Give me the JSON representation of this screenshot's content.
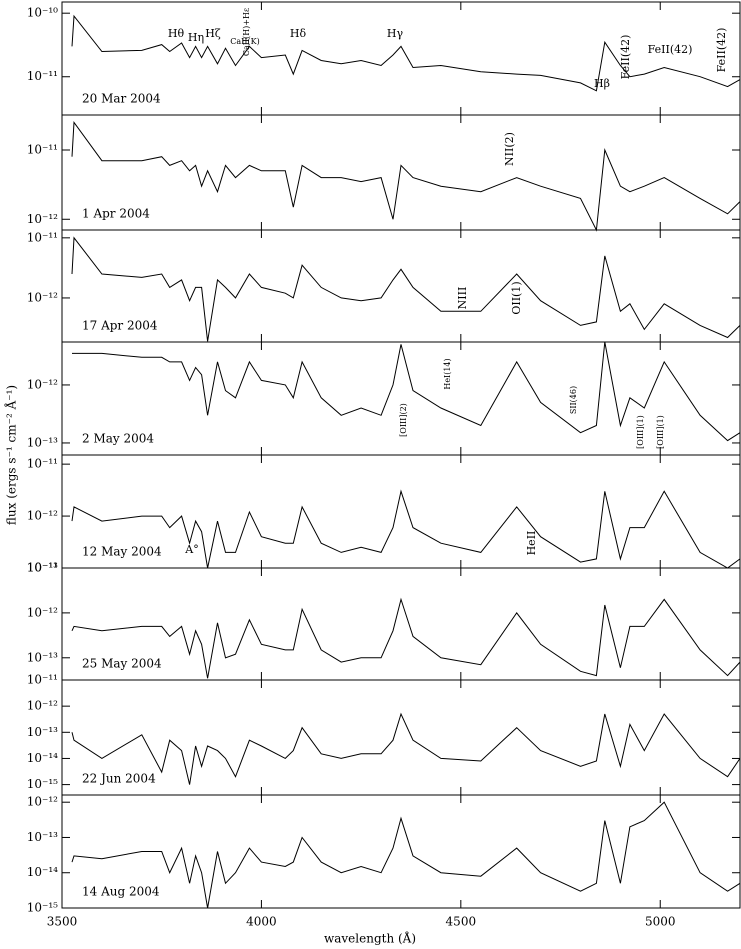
{
  "figure": {
    "xlabel": "wavelength (Å)",
    "ylabel": "flux (ergs s⁻¹ cm⁻² Å⁻¹)"
  },
  "chart_data": [
    {
      "type": "line",
      "label": "20 Mar 2004",
      "yscale": "log",
      "xlim": [
        3500,
        5200
      ],
      "xticks": [
        3500,
        4000,
        4500,
        5000
      ],
      "ylim": [
        2.5e-12,
        1.5e-10
      ],
      "yticks": [
        {
          "value": 1e-10,
          "label": "10⁻¹⁰"
        },
        {
          "value": 1e-11,
          "label": "10⁻¹¹"
        }
      ],
      "annotations": [
        "Hθ",
        "Hη",
        "Hζ",
        "CaII(K)",
        "CaII(H)+Hε",
        "Hδ",
        "Hγ",
        "Hβ",
        "FeII(42)",
        "FeII(42)",
        "FeII(42)"
      ],
      "x": [
        3525,
        3530,
        3600,
        3700,
        3750,
        3770,
        3800,
        3820,
        3835,
        3850,
        3865,
        3890,
        3910,
        3935,
        3970,
        4000,
        4060,
        4080,
        4102,
        4150,
        4200,
        4250,
        4300,
        4330,
        4350,
        4380,
        4450,
        4550,
        4640,
        4700,
        4800,
        4840,
        4861,
        4900,
        4924,
        4960,
        5010,
        5100,
        5169,
        5200
      ],
      "series": [
        {
          "color": "#000000",
          "values": [
            3e-11,
            9e-11,
            2.5e-11,
            2.6e-11,
            3.2e-11,
            2.5e-11,
            3.4e-11,
            2e-11,
            3e-11,
            2e-11,
            3e-11,
            1.6e-11,
            2.8e-11,
            1.5e-11,
            3e-11,
            2e-11,
            2.2e-11,
            1.1e-11,
            2.6e-11,
            1.8e-11,
            1.6e-11,
            1.8e-11,
            1.5e-11,
            2.2e-11,
            3e-11,
            1.4e-11,
            1.5e-11,
            1.2e-11,
            1.1e-11,
            1.05e-11,
            8e-12,
            6e-12,
            3.5e-11,
            1.5e-11,
            1e-11,
            1.1e-11,
            1.4e-11,
            1e-11,
            7e-12,
            9e-12
          ]
        }
      ]
    },
    {
      "type": "line",
      "label": "1 Apr 2004",
      "yscale": "log",
      "xlim": [
        3500,
        5200
      ],
      "xticks": [
        3500,
        4000,
        4500,
        5000
      ],
      "ylim": [
        7e-13,
        3.2e-11
      ],
      "yticks": [
        {
          "value": 1e-11,
          "label": "10⁻¹¹"
        },
        {
          "value": 1e-12,
          "label": "10⁻¹²"
        }
      ],
      "annotations": [
        "NII(2)"
      ],
      "x": [
        3525,
        3530,
        3600,
        3700,
        3750,
        3770,
        3800,
        3820,
        3835,
        3850,
        3865,
        3890,
        3910,
        3935,
        3970,
        4000,
        4060,
        4080,
        4102,
        4150,
        4200,
        4250,
        4300,
        4330,
        4350,
        4380,
        4450,
        4550,
        4640,
        4700,
        4800,
        4840,
        4861,
        4900,
        4924,
        4960,
        5010,
        5100,
        5169,
        5200
      ],
      "series": [
        {
          "color": "#000000",
          "values": [
            8e-12,
            2.5e-11,
            7e-12,
            7e-12,
            8e-12,
            6e-12,
            7e-12,
            5e-12,
            6e-12,
            3e-12,
            5e-12,
            2.5e-12,
            6e-12,
            4e-12,
            6e-12,
            5e-12,
            5e-12,
            1.5e-12,
            6e-12,
            4e-12,
            4e-12,
            3.5e-12,
            4e-12,
            1e-12,
            6e-12,
            4e-12,
            3e-12,
            2.5e-12,
            4e-12,
            3e-12,
            2e-12,
            7e-13,
            1e-11,
            3e-12,
            2.5e-12,
            3e-12,
            4e-12,
            2e-12,
            1.2e-12,
            1.8e-12
          ]
        }
      ]
    },
    {
      "type": "line",
      "label": "17 Apr 2004",
      "yscale": "log",
      "xlim": [
        3500,
        5200
      ],
      "xticks": [
        3500,
        4000,
        4500,
        5000
      ],
      "ylim": [
        1.85e-13,
        1.35e-11
      ],
      "yticks": [
        {
          "value": 1e-11,
          "label": "10⁻¹¹"
        },
        {
          "value": 1e-12,
          "label": "10⁻¹²"
        }
      ],
      "annotations": [
        "NIII",
        "OII(1)"
      ],
      "x": [
        3525,
        3530,
        3600,
        3700,
        3750,
        3770,
        3800,
        3820,
        3835,
        3850,
        3865,
        3890,
        3910,
        3935,
        3970,
        4000,
        4060,
        4080,
        4102,
        4150,
        4200,
        4250,
        4300,
        4330,
        4350,
        4380,
        4450,
        4550,
        4640,
        4700,
        4800,
        4840,
        4861,
        4900,
        4924,
        4960,
        5010,
        5100,
        5169,
        5200
      ],
      "series": [
        {
          "color": "#000000",
          "values": [
            2.5e-12,
            1e-11,
            2.5e-12,
            2.2e-12,
            2.5e-12,
            1.5e-12,
            2e-12,
            9e-13,
            1.5e-12,
            1.5e-12,
            1.9e-13,
            2e-12,
            1.5e-12,
            1e-12,
            2.5e-12,
            1.5e-12,
            1.2e-12,
            1e-12,
            3.5e-12,
            1.5e-12,
            1e-12,
            9e-13,
            1e-12,
            2e-12,
            3e-12,
            1.5e-12,
            6e-13,
            6e-13,
            2.5e-12,
            9e-13,
            3.5e-13,
            4e-13,
            5e-12,
            6e-13,
            8e-13,
            3e-13,
            8e-13,
            3.5e-13,
            2.2e-13,
            3.5e-13
          ]
        }
      ]
    },
    {
      "type": "line",
      "label": "2 May 2004",
      "yscale": "log",
      "xlim": [
        3500,
        5200
      ],
      "xticks": [
        3500,
        4000,
        4500,
        5000
      ],
      "ylim": [
        6.2e-14,
        5.5e-12
      ],
      "yticks": [
        {
          "value": 1e-12,
          "label": "10⁻¹²"
        },
        {
          "value": 1e-13,
          "label": "10⁻¹³"
        }
      ],
      "annotations": [
        "[OIII](2)",
        "HeI(14)",
        "SII(46)",
        "[OIII](1)",
        "[OIII](1)"
      ],
      "x": [
        3525,
        3530,
        3600,
        3700,
        3750,
        3770,
        3800,
        3820,
        3835,
        3850,
        3865,
        3890,
        3910,
        3935,
        3970,
        4000,
        4060,
        4080,
        4102,
        4150,
        4200,
        4250,
        4300,
        4330,
        4350,
        4380,
        4450,
        4550,
        4640,
        4700,
        4800,
        4840,
        4861,
        4900,
        4924,
        4960,
        5010,
        5100,
        5169,
        5200
      ],
      "series": [
        {
          "color": "#000000",
          "values": [
            3.5e-12,
            3.5e-12,
            3.5e-12,
            3e-12,
            3e-12,
            2.5e-12,
            2.5e-12,
            1.2e-12,
            2e-12,
            1.5e-12,
            3e-13,
            2.5e-12,
            8e-13,
            6e-13,
            2.5e-12,
            1.2e-12,
            1e-12,
            6e-13,
            2.5e-12,
            6e-13,
            3e-13,
            4e-13,
            3e-13,
            1e-12,
            5e-12,
            8e-13,
            4e-13,
            2e-13,
            2.5e-12,
            5e-13,
            1.5e-13,
            2e-13,
            5.5e-12,
            2e-13,
            6e-13,
            4e-13,
            2.5e-12,
            3e-13,
            1.1e-13,
            1.5e-13
          ]
        }
      ]
    },
    {
      "type": "line",
      "label": "12 May 2004",
      "yscale": "log",
      "xlim": [
        3500,
        5200
      ],
      "xticks": [
        3500,
        4000,
        4500,
        5000
      ],
      "ylim": [
        1e-13,
        1.5e-11
      ],
      "yticks": [
        {
          "value": 1e-11,
          "label": "10⁻¹¹"
        },
        {
          "value": 1e-12,
          "label": "10⁻¹²"
        },
        {
          "value": 1e-13,
          "label": "10⁻¹³"
        }
      ],
      "annotations": [
        "A°",
        "HeII"
      ],
      "x": [
        3525,
        3530,
        3600,
        3700,
        3750,
        3770,
        3800,
        3820,
        3835,
        3850,
        3865,
        3890,
        3910,
        3935,
        3970,
        4000,
        4060,
        4080,
        4102,
        4150,
        4200,
        4250,
        4300,
        4330,
        4350,
        4380,
        4450,
        4550,
        4640,
        4700,
        4800,
        4840,
        4861,
        4900,
        4924,
        4960,
        5010,
        5100,
        5169,
        5200
      ],
      "series": [
        {
          "color": "#000000",
          "values": [
            8e-13,
            1.5e-12,
            8e-13,
            1e-12,
            1e-12,
            6e-13,
            1e-12,
            3e-13,
            8e-13,
            5e-13,
            1e-13,
            8e-13,
            2e-13,
            2e-13,
            1.2e-12,
            4e-13,
            3e-13,
            3e-13,
            1.5e-12,
            3e-13,
            2e-13,
            2.5e-13,
            2e-13,
            6e-13,
            3e-12,
            6e-13,
            3e-13,
            2e-13,
            1.5e-12,
            4e-13,
            1.3e-13,
            1.5e-13,
            3e-12,
            1.5e-13,
            6e-13,
            6e-13,
            3e-12,
            2e-13,
            1e-13,
            1.5e-13
          ]
        }
      ]
    },
    {
      "type": "line",
      "label": "25 May 2004",
      "yscale": "log",
      "xlim": [
        3500,
        5200
      ],
      "xticks": [
        3500,
        4000,
        4500,
        5000
      ],
      "ylim": [
        3.2e-14,
        1e-11
      ],
      "yticks": [
        {
          "value": 1e-11,
          "label": "10⁻¹¹"
        },
        {
          "value": 1e-12,
          "label": "10⁻¹²"
        },
        {
          "value": 1e-13,
          "label": "10⁻¹³"
        }
      ],
      "x": [
        3525,
        3530,
        3600,
        3700,
        3750,
        3770,
        3800,
        3820,
        3835,
        3850,
        3865,
        3890,
        3910,
        3935,
        3970,
        4000,
        4060,
        4080,
        4102,
        4150,
        4200,
        4250,
        4300,
        4330,
        4350,
        4380,
        4450,
        4550,
        4640,
        4700,
        4800,
        4840,
        4861,
        4900,
        4924,
        4960,
        5010,
        5100,
        5169,
        5200
      ],
      "series": [
        {
          "color": "#000000",
          "values": [
            4e-13,
            5e-13,
            4e-13,
            5e-13,
            5e-13,
            3e-13,
            5e-13,
            1.2e-13,
            4e-13,
            2e-13,
            3.5e-14,
            6e-13,
            1e-13,
            1.2e-13,
            7e-13,
            2e-13,
            1.5e-13,
            1.5e-13,
            1.2e-12,
            1.5e-13,
            8e-14,
            1e-13,
            1e-13,
            4e-13,
            2e-12,
            3e-13,
            1e-13,
            7e-14,
            1e-12,
            2e-13,
            5e-14,
            4e-14,
            1.5e-12,
            6e-14,
            5e-13,
            5e-13,
            2e-12,
            1.5e-13,
            4e-14,
            8e-14
          ]
        }
      ]
    },
    {
      "type": "line",
      "label": "22 Jun 2004",
      "yscale": "log",
      "xlim": [
        3500,
        5200
      ],
      "xticks": [
        3500,
        4000,
        4500,
        5000
      ],
      "ylim": [
        4e-16,
        1e-11
      ],
      "yticks": [
        {
          "value": 1e-11,
          "label": "10⁻¹¹"
        },
        {
          "value": 1e-12,
          "label": "10⁻¹²"
        },
        {
          "value": 1e-13,
          "label": "10⁻¹³"
        },
        {
          "value": 1e-14,
          "label": "10⁻¹⁴"
        },
        {
          "value": 1e-15,
          "label": "10⁻¹⁵"
        }
      ],
      "x": [
        3525,
        3530,
        3600,
        3700,
        3750,
        3770,
        3800,
        3820,
        3835,
        3850,
        3865,
        3890,
        3910,
        3935,
        3970,
        4000,
        4060,
        4080,
        4102,
        4150,
        4200,
        4250,
        4300,
        4330,
        4350,
        4380,
        4450,
        4550,
        4640,
        4700,
        4800,
        4840,
        4861,
        4900,
        4924,
        4960,
        5010,
        5100,
        5169,
        5200
      ],
      "series": [
        {
          "color": "#000000",
          "values": [
            1e-13,
            5e-14,
            1e-14,
            8e-14,
            3e-15,
            5e-14,
            2e-14,
            1e-15,
            3e-14,
            5e-15,
            3e-14,
            2e-14,
            1e-14,
            2e-15,
            5e-14,
            3e-14,
            1e-14,
            2e-14,
            1.5e-13,
            1.5e-14,
            1e-14,
            1.5e-14,
            1.5e-14,
            5e-14,
            5e-13,
            5e-14,
            1e-14,
            8e-15,
            1.5e-13,
            2e-14,
            5e-15,
            8e-15,
            5e-13,
            5e-15,
            2e-13,
            2e-14,
            5e-13,
            1e-14,
            2e-15,
            1e-14
          ]
        }
      ]
    },
    {
      "type": "line",
      "label": "14 Aug 2004",
      "yscale": "log",
      "xlim": [
        3500,
        5200
      ],
      "xticks": [
        3500,
        4000,
        4500,
        5000
      ],
      "ylim": [
        1e-15,
        1.6e-12
      ],
      "yticks": [
        {
          "value": 1e-12,
          "label": "10⁻¹²"
        },
        {
          "value": 1e-13,
          "label": "10⁻¹³"
        },
        {
          "value": 1e-14,
          "label": "10⁻¹⁴"
        },
        {
          "value": 1e-15,
          "label": "10⁻¹⁵"
        }
      ],
      "x": [
        3525,
        3530,
        3600,
        3700,
        3750,
        3770,
        3800,
        3820,
        3835,
        3850,
        3865,
        3890,
        3910,
        3935,
        3970,
        4000,
        4060,
        4080,
        4102,
        4150,
        4200,
        4250,
        4300,
        4330,
        4350,
        4380,
        4450,
        4550,
        4640,
        4700,
        4800,
        4840,
        4861,
        4900,
        4924,
        4960,
        5010,
        5100,
        5169,
        5200
      ],
      "series": [
        {
          "color": "#000000",
          "values": [
            2e-14,
            3e-14,
            2.5e-14,
            4e-14,
            4e-14,
            1e-14,
            5e-14,
            5e-15,
            3e-14,
            1e-14,
            1e-15,
            4e-14,
            5e-15,
            1e-14,
            5e-14,
            2e-14,
            1.5e-14,
            2e-14,
            1e-13,
            2e-14,
            1e-14,
            1.5e-14,
            1e-14,
            5e-14,
            3.5e-13,
            3e-14,
            1e-14,
            8e-15,
            5e-14,
            1e-14,
            3e-15,
            5e-15,
            3e-13,
            5e-15,
            2e-13,
            3e-13,
            1e-12,
            1e-14,
            3e-15,
            5e-15
          ]
        }
      ]
    }
  ]
}
